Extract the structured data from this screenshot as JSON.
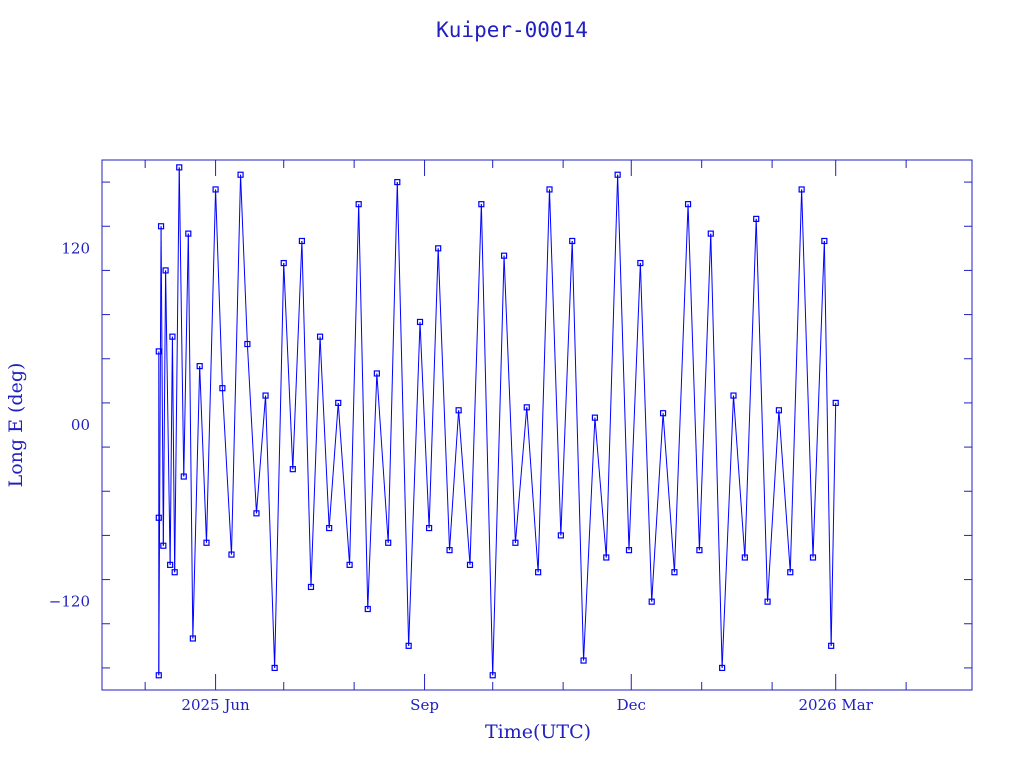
{
  "chart_data": {
    "type": "scatter",
    "title": "Kuiper-00014",
    "xlabel": "Time(UTC)",
    "ylabel": "Long E (deg)",
    "x_tick_labels": [
      "2025 Jun",
      "Sep",
      "Dec",
      "2026 Mar"
    ],
    "x_tick_dates": [
      "2025-06-01",
      "2025-09-01",
      "2025-12-01",
      "2026-03-01"
    ],
    "xlim": [
      "2025-04-12",
      "2026-04-30"
    ],
    "y_ticks": [
      -120,
      0,
      120
    ],
    "y_tick_labels": [
      "−120",
      "00",
      "120"
    ],
    "ylim": [
      -180,
      180
    ],
    "data_range": [
      "2025-05-07",
      "2026-03-01"
    ],
    "grid": false,
    "legend": "none",
    "colors": {
      "axes": "#2020c0",
      "line": "#0000ff",
      "marker": "#0000ff"
    },
    "series": [
      {
        "values_note": "",
        "points": [
          [
            "2025-05-07",
            50
          ],
          [
            "2025-05-07",
            -63
          ],
          [
            "2025-05-07",
            -170
          ],
          [
            "2025-05-08",
            135
          ],
          [
            "2025-05-09",
            -82
          ],
          [
            "2025-05-10",
            105
          ],
          [
            "2025-05-12",
            -95
          ],
          [
            "2025-05-13",
            60
          ],
          [
            "2025-05-14",
            -100
          ],
          [
            "2025-05-16",
            175
          ],
          [
            "2025-05-18",
            -35
          ],
          [
            "2025-05-20",
            130
          ],
          [
            "2025-05-22",
            -145
          ],
          [
            "2025-05-25",
            40
          ],
          [
            "2025-05-28",
            -80
          ],
          [
            "2025-06-01",
            160
          ],
          [
            "2025-06-04",
            25
          ],
          [
            "2025-06-08",
            -88
          ],
          [
            "2025-06-12",
            170
          ],
          [
            "2025-06-15",
            55
          ],
          [
            "2025-06-19",
            -60
          ],
          [
            "2025-06-23",
            20
          ],
          [
            "2025-06-27",
            -165
          ],
          [
            "2025-07-01",
            110
          ],
          [
            "2025-07-05",
            -30
          ],
          [
            "2025-07-09",
            125
          ],
          [
            "2025-07-13",
            -110
          ],
          [
            "2025-07-17",
            60
          ],
          [
            "2025-07-21",
            -70
          ],
          [
            "2025-07-25",
            15
          ],
          [
            "2025-07-30",
            -95
          ],
          [
            "2025-08-03",
            150
          ],
          [
            "2025-08-07",
            -125
          ],
          [
            "2025-08-11",
            35
          ],
          [
            "2025-08-16",
            -80
          ],
          [
            "2025-08-20",
            165
          ],
          [
            "2025-08-25",
            -150
          ],
          [
            "2025-08-30",
            70
          ],
          [
            "2025-09-03",
            -70
          ],
          [
            "2025-09-07",
            120
          ],
          [
            "2025-09-12",
            -85
          ],
          [
            "2025-09-16",
            10
          ],
          [
            "2025-09-21",
            -95
          ],
          [
            "2025-09-26",
            150
          ],
          [
            "2025-10-01",
            -170
          ],
          [
            "2025-10-06",
            115
          ],
          [
            "2025-10-11",
            -80
          ],
          [
            "2025-10-16",
            12
          ],
          [
            "2025-10-21",
            -100
          ],
          [
            "2025-10-26",
            160
          ],
          [
            "2025-10-31",
            -75
          ],
          [
            "2025-11-05",
            125
          ],
          [
            "2025-11-10",
            -160
          ],
          [
            "2025-11-15",
            5
          ],
          [
            "2025-11-20",
            -90
          ],
          [
            "2025-11-25",
            170
          ],
          [
            "2025-11-30",
            -85
          ],
          [
            "2025-12-05",
            110
          ],
          [
            "2025-12-10",
            -120
          ],
          [
            "2025-12-15",
            8
          ],
          [
            "2025-12-20",
            -100
          ],
          [
            "2025-12-26",
            150
          ],
          [
            "2025-12-31",
            -85
          ],
          [
            "2026-01-05",
            130
          ],
          [
            "2026-01-10",
            -165
          ],
          [
            "2026-01-15",
            20
          ],
          [
            "2026-01-20",
            -90
          ],
          [
            "2026-01-25",
            140
          ],
          [
            "2026-01-30",
            -120
          ],
          [
            "2026-02-04",
            10
          ],
          [
            "2026-02-09",
            -100
          ],
          [
            "2026-02-14",
            160
          ],
          [
            "2026-02-19",
            -90
          ],
          [
            "2026-02-24",
            125
          ],
          [
            "2026-02-27",
            -150
          ],
          [
            "2026-03-01",
            15
          ]
        ]
      }
    ]
  }
}
